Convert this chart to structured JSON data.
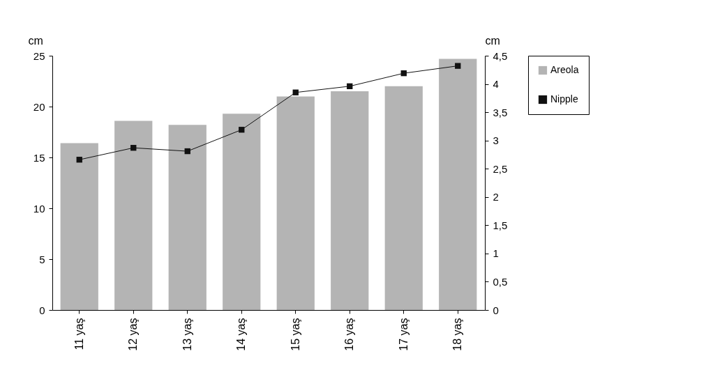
{
  "chart_data": {
    "type": "bar",
    "categories": [
      "11 yaş",
      "12 yaş",
      "13 yaş",
      "14 yaş",
      "15 yaş",
      "16 yaş",
      "17 yaş",
      "18 yaş"
    ],
    "series": [
      {
        "name": "Areola",
        "color": "#b4b4b4",
        "values": [
          16.4,
          18.6,
          18.2,
          19.3,
          21.0,
          21.5,
          22.0,
          24.7
        ]
      },
      {
        "name": "Nipple",
        "type": "line",
        "axis": "y2",
        "color": "#111111",
        "marker": "square",
        "line_style": "solid",
        "values": [
          2.66,
          2.87,
          2.81,
          3.19,
          3.85,
          3.96,
          4.19,
          4.32
        ]
      }
    ],
    "ylabel": "cm",
    "y2label": "cm",
    "ylim": [
      0,
      25
    ],
    "yticks": [
      0,
      5,
      10,
      15,
      20,
      25
    ],
    "y2lim": [
      0,
      4.5
    ],
    "y2ticks": [
      0,
      {
        "value": 0.5,
        "label": "0,5"
      },
      1,
      {
        "value": 1.5,
        "label": "1,5"
      },
      2,
      {
        "value": 2.5,
        "label": "2,5"
      },
      3,
      {
        "value": 3.5,
        "label": "3,5"
      },
      4,
      {
        "value": 4.5,
        "label": "4,5"
      }
    ],
    "grid": false,
    "legend": "top right"
  }
}
